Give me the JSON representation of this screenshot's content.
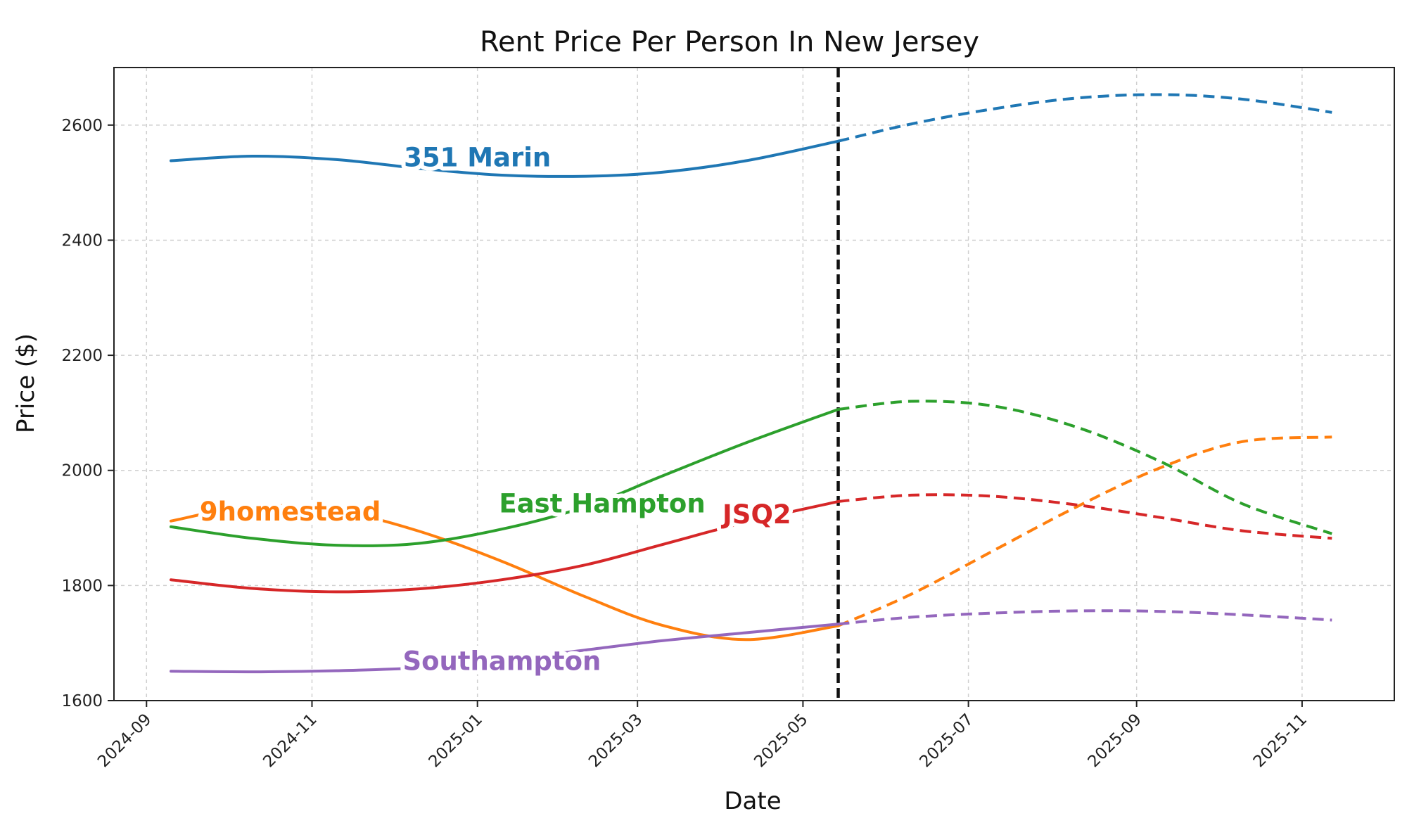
{
  "chart_data": {
    "type": "line",
    "title": "Rent Price Per Person In New Jersey",
    "xlabel": "Date",
    "ylabel": "Price ($)",
    "ylim": [
      1600,
      2700
    ],
    "xlim": [
      "2024-08-20",
      "2025-12-05"
    ],
    "x_ticks": [
      "2024-09",
      "2024-11",
      "2025-01",
      "2025-03",
      "2025-05",
      "2025-07",
      "2025-09",
      "2025-11"
    ],
    "y_ticks": [
      1600,
      1800,
      2000,
      2200,
      2400,
      2600
    ],
    "grid": true,
    "forecast_start": "2025-05-14",
    "series": [
      {
        "name": "351 Marin",
        "color": "#1f77b4",
        "actual": {
          "x": [
            "2024-09-10",
            "2024-10-10",
            "2024-11-10",
            "2024-12-10",
            "2025-01-10",
            "2025-02-10",
            "2025-03-10",
            "2025-04-10",
            "2025-05-14"
          ],
          "y": [
            2538,
            2546,
            2540,
            2525,
            2513,
            2511,
            2518,
            2538,
            2572
          ]
        },
        "forecast": {
          "x": [
            "2025-05-14",
            "2025-06-10",
            "2025-07-10",
            "2025-08-10",
            "2025-09-10",
            "2025-10-10",
            "2025-11-12"
          ],
          "y": [
            2572,
            2602,
            2628,
            2647,
            2653,
            2645,
            2622
          ]
        }
      },
      {
        "name": "9homestead",
        "color": "#ff7f0e",
        "actual": {
          "x": [
            "2024-09-10",
            "2024-10-10",
            "2024-11-10",
            "2024-12-10",
            "2025-01-10",
            "2025-02-10",
            "2025-03-10",
            "2025-04-10",
            "2025-05-14"
          ],
          "y": [
            1912,
            1938,
            1930,
            1895,
            1842,
            1780,
            1731,
            1706,
            1730
          ]
        },
        "forecast": {
          "x": [
            "2025-05-14",
            "2025-06-10",
            "2025-07-10",
            "2025-08-10",
            "2025-09-10",
            "2025-10-10",
            "2025-11-12"
          ],
          "y": [
            1730,
            1785,
            1860,
            1937,
            2005,
            2050,
            2058
          ]
        }
      },
      {
        "name": "East Hampton",
        "color": "#2ca02c",
        "actual": {
          "x": [
            "2024-09-10",
            "2024-10-10",
            "2024-11-10",
            "2024-12-10",
            "2025-01-10",
            "2025-02-10",
            "2025-03-10",
            "2025-04-10",
            "2025-05-14"
          ],
          "y": [
            1902,
            1882,
            1870,
            1873,
            1898,
            1937,
            1990,
            2048,
            2106
          ]
        },
        "forecast": {
          "x": [
            "2025-05-14",
            "2025-06-10",
            "2025-07-10",
            "2025-08-10",
            "2025-09-10",
            "2025-10-10",
            "2025-11-12"
          ],
          "y": [
            2106,
            2120,
            2112,
            2075,
            2015,
            1942,
            1890
          ]
        }
      },
      {
        "name": "JSQ2",
        "color": "#d62728",
        "actual": {
          "x": [
            "2024-09-10",
            "2024-10-10",
            "2024-11-10",
            "2024-12-10",
            "2025-01-10",
            "2025-02-10",
            "2025-03-10",
            "2025-04-10",
            "2025-05-14"
          ],
          "y": [
            1810,
            1795,
            1789,
            1794,
            1810,
            1836,
            1871,
            1910,
            1946
          ]
        },
        "forecast": {
          "x": [
            "2025-05-14",
            "2025-06-10",
            "2025-07-10",
            "2025-08-10",
            "2025-09-10",
            "2025-10-10",
            "2025-11-12"
          ],
          "y": [
            1946,
            1957,
            1955,
            1940,
            1918,
            1895,
            1882
          ]
        }
      },
      {
        "name": "Southampton",
        "color": "#9467bd",
        "actual": {
          "x": [
            "2024-09-10",
            "2024-10-10",
            "2024-11-10",
            "2024-12-10",
            "2025-01-10",
            "2025-02-10",
            "2025-03-10",
            "2025-04-10",
            "2025-05-14"
          ],
          "y": [
            1651,
            1650,
            1652,
            1657,
            1670,
            1688,
            1704,
            1718,
            1733
          ]
        },
        "forecast": {
          "x": [
            "2025-05-14",
            "2025-06-10",
            "2025-07-10",
            "2025-08-10",
            "2025-09-10",
            "2025-10-10",
            "2025-11-12"
          ],
          "y": [
            1733,
            1745,
            1752,
            1756,
            1755,
            1749,
            1740
          ]
        }
      }
    ]
  }
}
